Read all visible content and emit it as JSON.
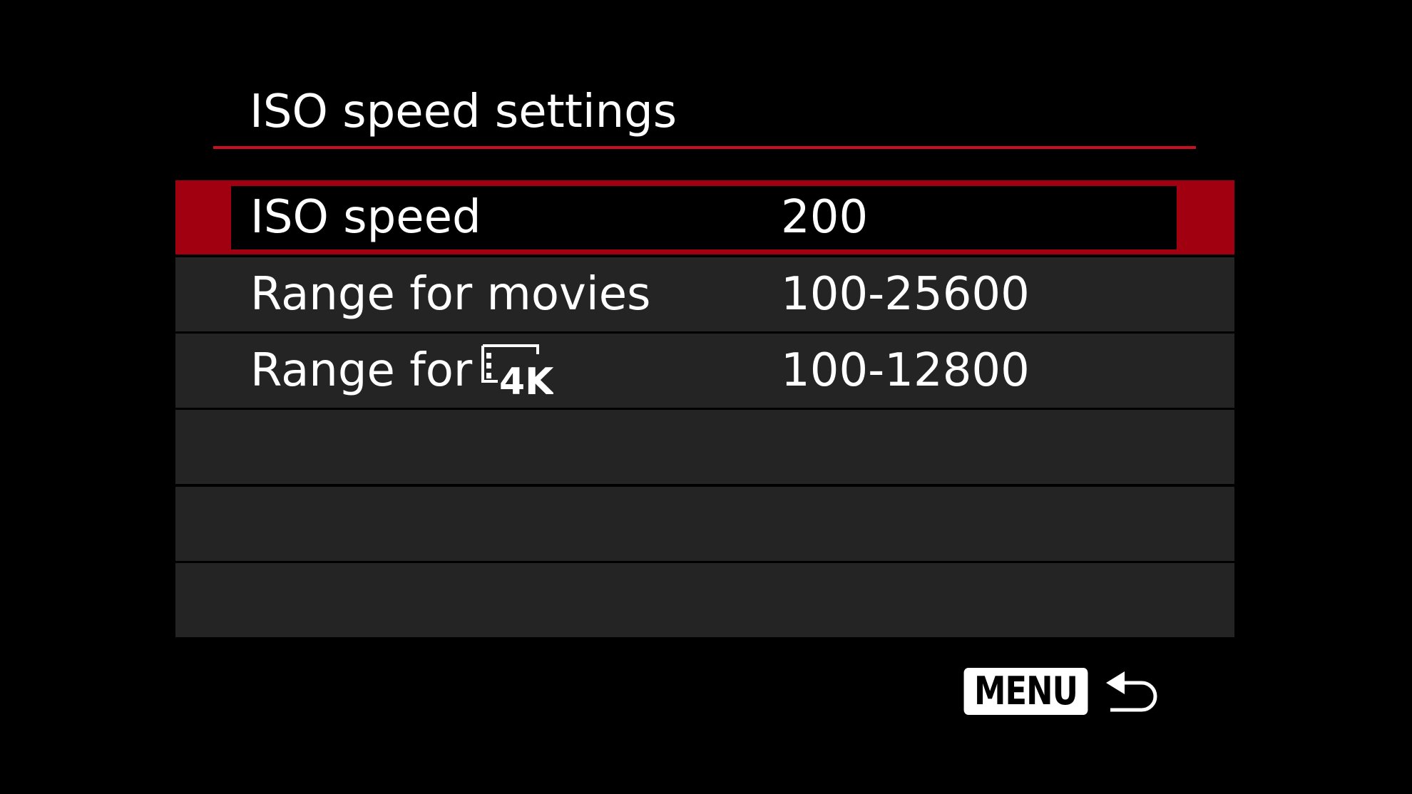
{
  "header": {
    "title": "ISO speed settings"
  },
  "colors": {
    "accent": "#c8101e",
    "selected_bg": "#a0000f",
    "row_bg": "#242424"
  },
  "menu": {
    "items": [
      {
        "label": "ISO speed",
        "value": "200",
        "selected": true
      },
      {
        "label": "Range for movies",
        "value": "100-25600",
        "selected": false
      },
      {
        "label": "Range for",
        "icon": "4k-movie-icon",
        "value": "100-12800",
        "selected": false
      },
      {
        "label": "",
        "value": ""
      },
      {
        "label": "",
        "value": ""
      },
      {
        "label": "",
        "value": ""
      }
    ]
  },
  "footer": {
    "menu_label": "MENU",
    "back_icon": "return-arrow-icon"
  }
}
